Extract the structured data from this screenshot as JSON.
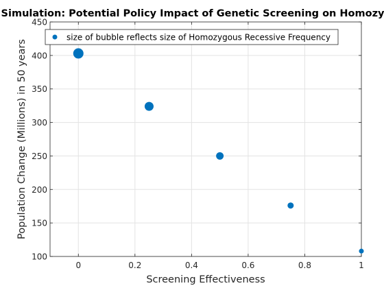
{
  "chart_data": {
    "type": "scatter",
    "title": "Population Dynamics Simulation: Potential Policy Impact of Genetic Screening on Homozygous Recessive Frequency",
    "xlabel": "Screening Effectiveness",
    "ylabel": "Population Change (Millions) in 50 years",
    "xlim": [
      -0.1,
      1.0
    ],
    "ylim": [
      100,
      450
    ],
    "xticks": [
      0,
      0.2,
      0.4,
      0.6,
      0.8,
      1
    ],
    "xtick_labels": [
      "0",
      "0.2",
      "0.4",
      "0.6",
      "0.8",
      "1"
    ],
    "yticks": [
      100,
      150,
      200,
      250,
      300,
      350,
      400,
      450
    ],
    "ytick_labels": [
      "100",
      "150",
      "200",
      "250",
      "300",
      "350",
      "400",
      "450"
    ],
    "grid": true,
    "legend_position": "top-right",
    "legend_label": "size of bubble reflects size of Homozygous Recessive Frequency",
    "marker_color": "#0072BD",
    "points": [
      {
        "x": 0.0,
        "y": 403,
        "size": 1.0
      },
      {
        "x": 0.25,
        "y": 324,
        "size": 0.87
      },
      {
        "x": 0.5,
        "y": 250,
        "size": 0.73
      },
      {
        "x": 0.75,
        "y": 176,
        "size": 0.6
      },
      {
        "x": 1.0,
        "y": 108,
        "size": 0.47
      }
    ]
  }
}
